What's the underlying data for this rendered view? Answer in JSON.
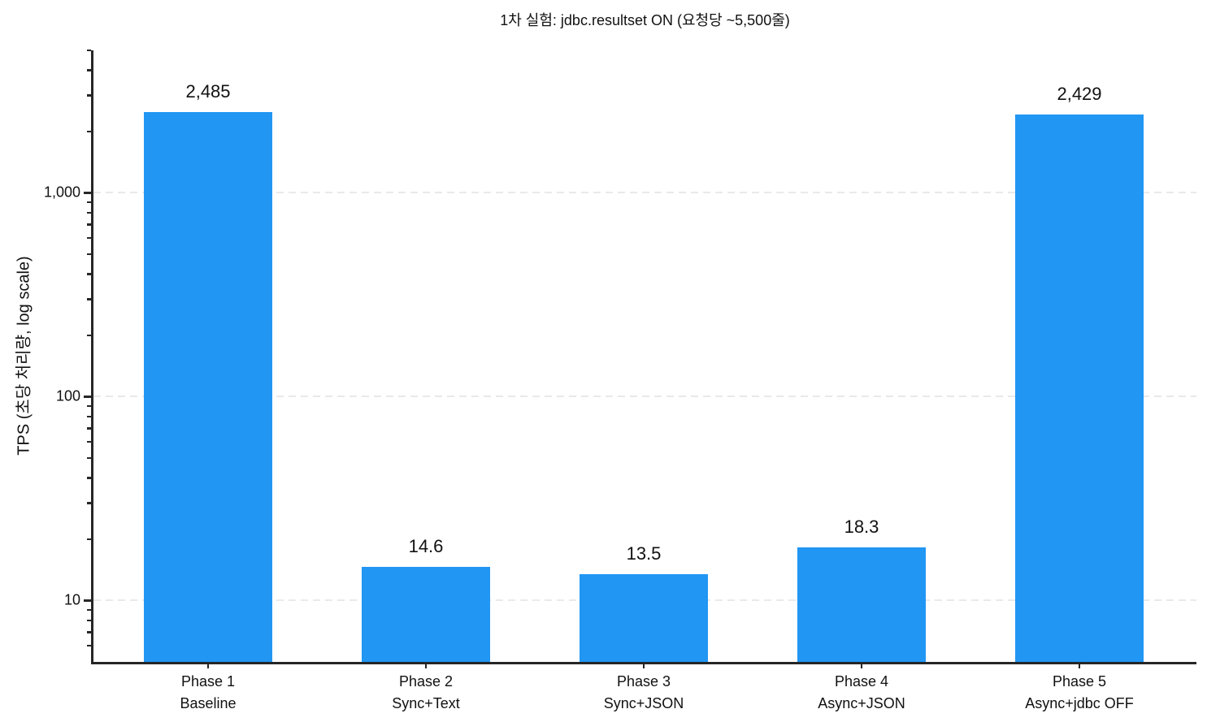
{
  "title": "1차 실험: jdbc.resultset ON (요청당 ~5,500줄)",
  "colors": {
    "bar": "#2196f3",
    "axis": "#262626",
    "grid": "#e9e9e9",
    "text": "#111111",
    "background": "#ffffff"
  },
  "chart_data": {
    "type": "bar",
    "title": "1차 실험: jdbc.resultset ON (요청당 ~5,500줄)",
    "xlabel": "",
    "ylabel": "TPS (초당 처리량, log scale)",
    "yscale": "log",
    "ylim": [
      5,
      5000
    ],
    "grid": {
      "axis": "y",
      "style": "dashed",
      "color": "#e9e9e9",
      "at": [
        10,
        100,
        1000
      ]
    },
    "legend": null,
    "bar_color": "#2196f3",
    "yticks": [
      {
        "value": 10,
        "label": "10"
      },
      {
        "value": 100,
        "label": "100"
      },
      {
        "value": 1000,
        "label": "1,000"
      }
    ],
    "categories": [
      {
        "label": "Phase 1",
        "sublabel": "Baseline"
      },
      {
        "label": "Phase 2",
        "sublabel": "Sync+Text"
      },
      {
        "label": "Phase 3",
        "sublabel": "Sync+JSON"
      },
      {
        "label": "Phase 4",
        "sublabel": "Async+JSON"
      },
      {
        "label": "Phase 5",
        "sublabel": "Async+jdbc OFF"
      }
    ],
    "values": [
      2485,
      14.6,
      13.5,
      18.3,
      2429
    ],
    "value_labels": [
      "2,485",
      "14.6",
      "13.5",
      "18.3",
      "2,429"
    ],
    "series": [
      {
        "name": "TPS",
        "values": [
          2485,
          14.6,
          13.5,
          18.3,
          2429
        ]
      }
    ]
  }
}
